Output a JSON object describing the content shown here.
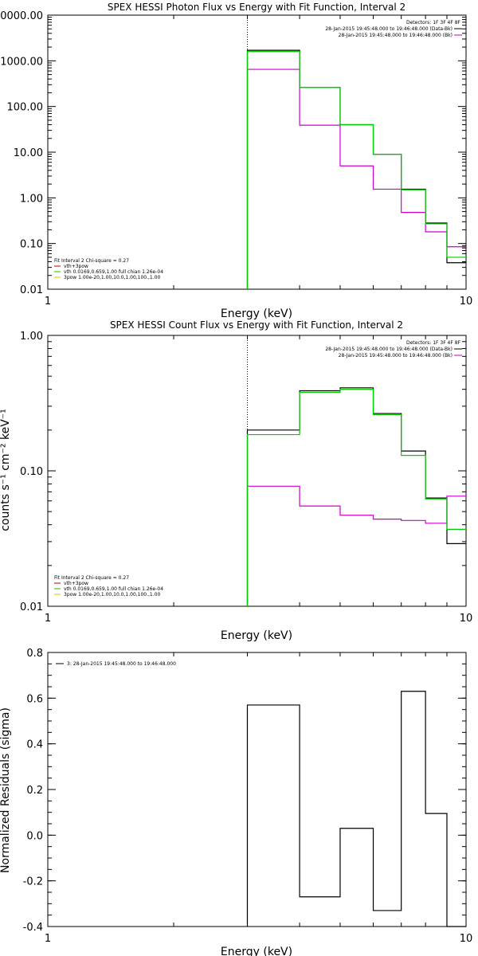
{
  "chart_data": [
    {
      "type": "line",
      "title": "SPEX HESSI Photon Flux vs Energy with Fit Function, Interval 2",
      "xlabel": "Energy (keV)",
      "ylabel": "",
      "xscale": "log",
      "yscale": "log",
      "xlim": [
        1,
        10
      ],
      "ylim": [
        0.01,
        10000
      ],
      "x_ticks": [
        {
          "v": 1,
          "label": "1"
        },
        {
          "v": 10,
          "label": "10"
        }
      ],
      "y_ticks": [
        {
          "v": 0.01,
          "label": "0.01"
        },
        {
          "v": 0.1,
          "label": "0.10"
        },
        {
          "v": 1,
          "label": "1.00"
        },
        {
          "v": 10,
          "label": "10.00"
        },
        {
          "v": 100,
          "label": "100.00"
        },
        {
          "v": 1000,
          "label": "1000.00"
        },
        {
          "v": 10000,
          "label": "10000.00"
        }
      ],
      "dotted_x": 3,
      "bin_edges": [
        3,
        4,
        5,
        6,
        7,
        8,
        9,
        10
      ],
      "series": [
        {
          "key": "data",
          "color": "#000000",
          "values": [
            1700,
            260,
            40,
            9,
            1.55,
            0.28,
            0.038
          ]
        },
        {
          "key": "bk",
          "color": "#cc00cc",
          "values": [
            650,
            39,
            5,
            1.55,
            0.48,
            0.18,
            0.085
          ]
        },
        {
          "key": "fit",
          "color": "#00cc00",
          "values": [
            1600,
            260,
            40,
            9,
            1.5,
            0.27,
            0.05
          ]
        }
      ],
      "legend_right": {
        "header": "Detectors: 1F 3F 4F 8F",
        "entries": [
          {
            "text": "28-Jan-2015 19:45:48.000 to 19:46:48.000 (Data-Bk)",
            "color": "#000000"
          },
          {
            "text": "28-Jan-2015 19:45:48.000 to 19:46:48.000 (Bk)",
            "color": "#cc00cc"
          }
        ]
      },
      "legend_left": {
        "header": "Fit Interval 2   Chi-square = 0.27",
        "entries": [
          {
            "text": "vth+3pow",
            "color": "#cc0000"
          },
          {
            "text": "vth 0.0169,0.659,1.00  full chian 1.26e-04",
            "color": "#00cc00"
          },
          {
            "text": "3pow 1.00e-20,1.00,10.0,1.00,100.,1.00",
            "color": "#c8c800"
          }
        ]
      }
    },
    {
      "type": "line",
      "title": "SPEX HESSI Count Flux vs Energy with Fit Function, Interval 2",
      "xlabel": "Energy (keV)",
      "ylabel": "counts s⁻¹ cm⁻² keV⁻¹",
      "xscale": "log",
      "yscale": "log",
      "xlim": [
        1,
        10
      ],
      "ylim": [
        0.01,
        1
      ],
      "x_ticks": [
        {
          "v": 1,
          "label": "1"
        },
        {
          "v": 10,
          "label": "10"
        }
      ],
      "y_ticks": [
        {
          "v": 0.01,
          "label": "0.01"
        },
        {
          "v": 0.1,
          "label": "0.10"
        },
        {
          "v": 1,
          "label": "1.00"
        }
      ],
      "dotted_x": 3,
      "bin_edges": [
        3,
        4,
        5,
        6,
        7,
        8,
        9,
        10
      ],
      "series": [
        {
          "key": "data",
          "color": "#000000",
          "values": [
            0.2,
            0.39,
            0.41,
            0.265,
            0.14,
            0.063,
            0.029
          ]
        },
        {
          "key": "bk",
          "color": "#cc00cc",
          "values": [
            0.077,
            0.055,
            0.047,
            0.044,
            0.043,
            0.041,
            0.065
          ]
        },
        {
          "key": "fit",
          "color": "#00cc00",
          "values": [
            0.185,
            0.38,
            0.4,
            0.26,
            0.13,
            0.062,
            0.037
          ]
        }
      ],
      "legend_right": {
        "header": "Detectors: 1F 3F 4F 8F",
        "entries": [
          {
            "text": "28-Jan-2015 19:45:48.000 to 19:46:48.000 (Data-Bk)",
            "color": "#000000"
          },
          {
            "text": "28-Jan-2015 19:45:48.000 to 19:46:48.000 (Bk)",
            "color": "#cc00cc"
          }
        ]
      },
      "legend_left": {
        "header": "Fit Interval 2   Chi-square = 0.27",
        "entries": [
          {
            "text": "vth+3pow",
            "color": "#cc0000"
          },
          {
            "text": "vth 0.0169,0.659,1.00  full chian 1.26e-04",
            "color": "#00cc00"
          },
          {
            "text": "3pow 1.00e-20,1.00,10.0,1.00,100.,1.00",
            "color": "#c8c800"
          }
        ]
      }
    },
    {
      "type": "line",
      "title": "",
      "xlabel": "Energy (keV)",
      "ylabel": "Normalized Residuals (sigma)",
      "xscale": "log",
      "yscale": "linear",
      "xlim": [
        1,
        10
      ],
      "ylim": [
        -0.4,
        0.8
      ],
      "x_ticks": [
        {
          "v": 1,
          "label": "1"
        },
        {
          "v": 10,
          "label": "10"
        }
      ],
      "y_ticks": [
        {
          "v": -0.4,
          "label": "-0.4"
        },
        {
          "v": -0.2,
          "label": "-0.2"
        },
        {
          "v": 0.0,
          "label": "0.0"
        },
        {
          "v": 0.2,
          "label": "0.2"
        },
        {
          "v": 0.4,
          "label": "0.4"
        },
        {
          "v": 0.6,
          "label": "0.6"
        },
        {
          "v": 0.8,
          "label": "0.8"
        }
      ],
      "bin_edges": [
        3,
        4,
        5,
        6,
        7,
        8,
        9,
        10
      ],
      "series": [
        {
          "key": "resid",
          "color": "#000000",
          "values": [
            0.57,
            -0.27,
            0.03,
            -0.33,
            0.63,
            0.095,
            -0.4
          ]
        }
      ],
      "legend_left_top": {
        "entries": [
          {
            "text": "3: 28-Jan-2015 19:45:48.000 to 19:46:48.000",
            "color": "#000000"
          }
        ]
      }
    }
  ]
}
